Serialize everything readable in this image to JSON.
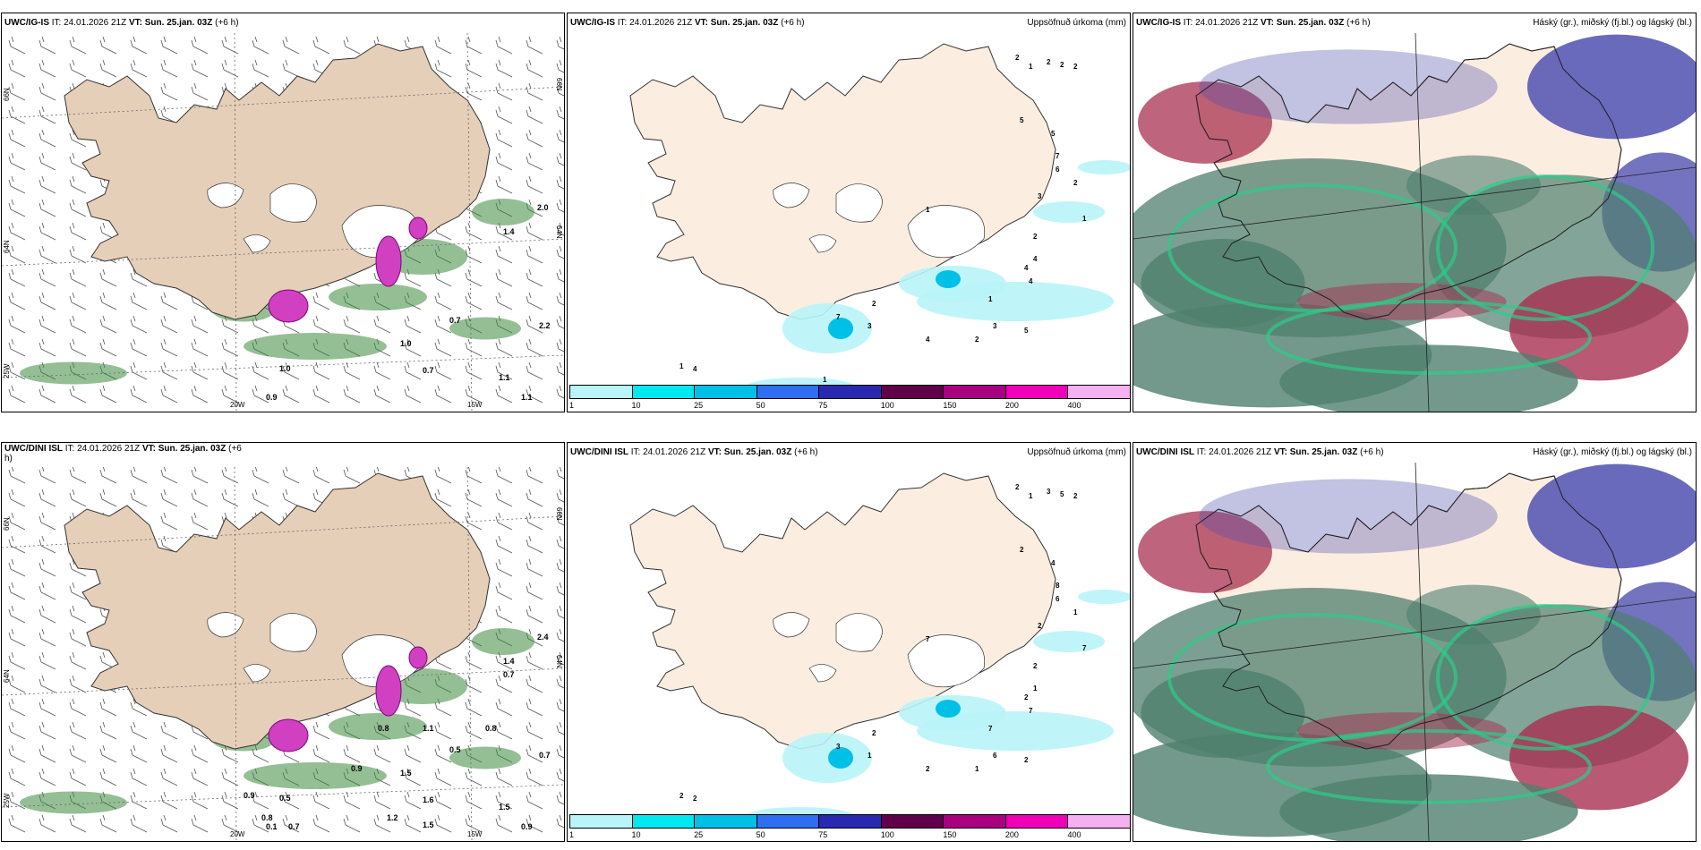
{
  "panels": [
    {
      "id": "top-wind",
      "model": "UWC/IG-IS",
      "it_label": "IT:",
      "it_value": "24.01.2026 21Z",
      "vt_label": "VT:",
      "vt_value": "Sun. 25.jan. 03Z",
      "lead": "(+6 h)",
      "right_title": "",
      "lon_labels": [
        "20W",
        "15W"
      ],
      "lat_labels_left": [
        "66N",
        "64N",
        "25W"
      ],
      "lat_labels_right": [
        "66N",
        "64N"
      ],
      "values": [
        "0.9",
        "1.0",
        "1.1",
        "0.7",
        "1.1",
        "2.2",
        "2.0",
        "1.4",
        "1.0",
        "0.7"
      ]
    },
    {
      "id": "top-precip",
      "model": "UWC/IG-IS",
      "it_label": "IT:",
      "it_value": "24.01.2026 21Z",
      "vt_label": "VT:",
      "vt_value": "Sun. 25.jan. 03Z",
      "lead": "(+6 h)",
      "right_title": "Uppsöfnuð úrkoma (mm)",
      "values": [
        "2",
        "1",
        "2",
        "2",
        "2",
        "5",
        "5",
        "7",
        "6",
        "2",
        "3",
        "1",
        "1",
        "2",
        "4",
        "4",
        "4",
        "1",
        "2",
        "7",
        "3",
        "3",
        "5",
        "4",
        "2",
        "1",
        "4",
        "1"
      ],
      "colorbar_ticks": [
        "1",
        "10",
        "25",
        "50",
        "75",
        "100",
        "150",
        "200",
        "400"
      ]
    },
    {
      "id": "top-cloud",
      "model": "UWC/IG-IS",
      "it_label": "IT:",
      "it_value": "24.01.2026 21Z",
      "vt_label": "VT:",
      "vt_value": "Sun. 25.jan. 03Z",
      "lead": "(+6 h)",
      "right_title": "Háský (gr.), miðský (fj.bl.) og lágský (bl.)"
    },
    {
      "id": "bottom-wind",
      "model": "UWC/DINI ISL",
      "it_label": "IT:",
      "it_value": "24.01.2026 21Z",
      "vt_label": "VT:",
      "vt_value": "Sun. 25.jan. 03Z",
      "lead": "(+6",
      "lead_cont": "h)",
      "right_title": "",
      "lon_labels": [
        "20W",
        "15W"
      ],
      "lat_labels_left": [
        "66N",
        "64N",
        "25W"
      ],
      "lat_labels_right": [
        "66N",
        "64N"
      ],
      "values": [
        "0.1",
        "1.5",
        "1.5",
        "0.5",
        "0.9",
        "0.7",
        "2.4",
        "1.4",
        "0.5",
        "1.6",
        "0.7",
        "0.8",
        "0.8",
        "0.9",
        "1.1",
        "0.9",
        "0.8",
        "0.7",
        "1.2",
        "1.5"
      ]
    },
    {
      "id": "bottom-precip",
      "model": "UWC/DINI ISL",
      "it_label": "IT:",
      "it_value": "24.01.2026 21Z",
      "vt_label": "VT:",
      "vt_value": "Sun. 25.jan. 03Z",
      "lead": "(+6 h)",
      "right_title": "Uppsöfnuð úrkoma (mm)",
      "values": [
        "2",
        "1",
        "3",
        "5",
        "2",
        "2",
        "4",
        "8",
        "6",
        "1",
        "2",
        "7",
        "7",
        "2",
        "1",
        "2",
        "7",
        "7",
        "2",
        "3",
        "1",
        "6",
        "2",
        "2",
        "1",
        "2",
        "2"
      ],
      "colorbar_ticks": [
        "1",
        "10",
        "25",
        "50",
        "75",
        "100",
        "150",
        "200",
        "400"
      ]
    },
    {
      "id": "bottom-cloud",
      "model": "UWC/DINI ISL",
      "it_label": "IT:",
      "it_value": "24.01.2026 21Z",
      "vt_label": "VT:",
      "vt_value": "Sun. 25.jan. 03Z",
      "lead": "(+6 h)",
      "right_title": "Háský (gr.), miðský (fj.bl.) og lágský (bl.)"
    }
  ],
  "colors": {
    "land": "#fbeee0",
    "land_wind": "#e5cfb8",
    "precip_scale": [
      "#b8f4f8",
      "#00e8f0",
      "#00c0e8",
      "#2f6ef0",
      "#2828b0",
      "#60004a",
      "#a80080",
      "#f000b8",
      "#f4b0f0"
    ],
    "cloud_high": "#4f7f6e",
    "cloud_mid": "#5050b0",
    "cloud_low": "#a83050",
    "wind_fill": "#3c8a3c"
  }
}
